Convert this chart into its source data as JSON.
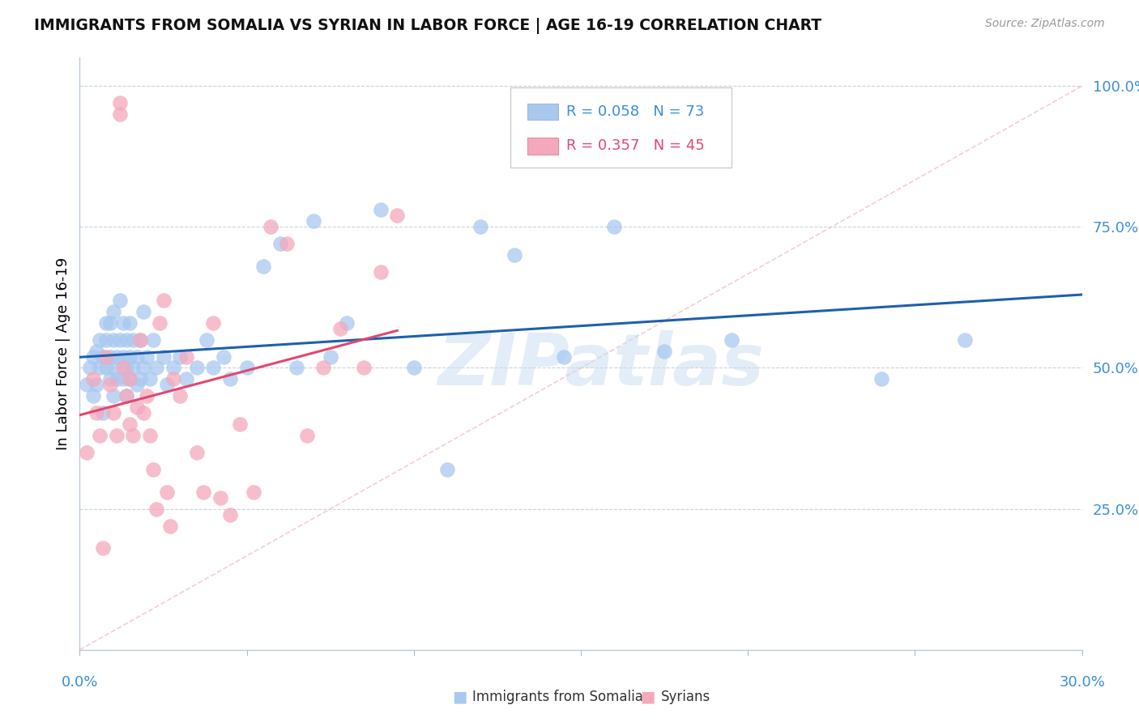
{
  "title": "IMMIGRANTS FROM SOMALIA VS SYRIAN IN LABOR FORCE | AGE 16-19 CORRELATION CHART",
  "source": "Source: ZipAtlas.com",
  "ylabel": "In Labor Force | Age 16-19",
  "watermark": "ZIPatlas",
  "legend_blue_r": "0.058",
  "legend_blue_n": "73",
  "legend_pink_r": "0.357",
  "legend_pink_n": "45",
  "legend_label_blue": "Immigrants from Somalia",
  "legend_label_pink": "Syrians",
  "blue_color": "#A8C8F0",
  "pink_color": "#F4A8BC",
  "blue_line_color": "#1E5FB0",
  "pink_line_color": "#E04870",
  "diagonal_color": "#F0C0CC",
  "xlim": [
    0.0,
    0.3
  ],
  "ylim": [
    0.0,
    1.05
  ],
  "somalia_x": [
    0.002,
    0.003,
    0.004,
    0.004,
    0.005,
    0.005,
    0.006,
    0.006,
    0.007,
    0.007,
    0.008,
    0.008,
    0.008,
    0.009,
    0.009,
    0.009,
    0.01,
    0.01,
    0.01,
    0.01,
    0.011,
    0.011,
    0.012,
    0.012,
    0.013,
    0.013,
    0.013,
    0.014,
    0.014,
    0.014,
    0.015,
    0.015,
    0.015,
    0.016,
    0.016,
    0.017,
    0.017,
    0.018,
    0.018,
    0.019,
    0.019,
    0.02,
    0.021,
    0.022,
    0.023,
    0.025,
    0.026,
    0.028,
    0.03,
    0.032,
    0.035,
    0.038,
    0.04,
    0.043,
    0.045,
    0.05,
    0.055,
    0.06,
    0.065,
    0.07,
    0.075,
    0.08,
    0.09,
    0.1,
    0.11,
    0.12,
    0.13,
    0.145,
    0.16,
    0.175,
    0.195,
    0.24,
    0.265
  ],
  "somalia_y": [
    0.47,
    0.5,
    0.45,
    0.52,
    0.47,
    0.53,
    0.5,
    0.55,
    0.42,
    0.52,
    0.58,
    0.5,
    0.55,
    0.48,
    0.52,
    0.58,
    0.45,
    0.5,
    0.55,
    0.6,
    0.52,
    0.48,
    0.55,
    0.62,
    0.48,
    0.52,
    0.58,
    0.45,
    0.5,
    0.55,
    0.48,
    0.52,
    0.58,
    0.5,
    0.55,
    0.47,
    0.52,
    0.48,
    0.55,
    0.5,
    0.6,
    0.52,
    0.48,
    0.55,
    0.5,
    0.52,
    0.47,
    0.5,
    0.52,
    0.48,
    0.5,
    0.55,
    0.5,
    0.52,
    0.48,
    0.5,
    0.68,
    0.72,
    0.5,
    0.76,
    0.52,
    0.58,
    0.78,
    0.5,
    0.32,
    0.75,
    0.7,
    0.52,
    0.75,
    0.53,
    0.55,
    0.48,
    0.55
  ],
  "syrian_x": [
    0.002,
    0.004,
    0.005,
    0.006,
    0.007,
    0.008,
    0.009,
    0.01,
    0.011,
    0.012,
    0.012,
    0.013,
    0.014,
    0.015,
    0.015,
    0.016,
    0.017,
    0.018,
    0.019,
    0.02,
    0.021,
    0.022,
    0.023,
    0.024,
    0.025,
    0.026,
    0.027,
    0.028,
    0.03,
    0.032,
    0.035,
    0.037,
    0.04,
    0.042,
    0.045,
    0.048,
    0.052,
    0.057,
    0.062,
    0.068,
    0.073,
    0.078,
    0.085,
    0.09,
    0.095
  ],
  "syrian_y": [
    0.35,
    0.48,
    0.42,
    0.38,
    0.18,
    0.52,
    0.47,
    0.42,
    0.38,
    0.97,
    0.95,
    0.5,
    0.45,
    0.4,
    0.48,
    0.38,
    0.43,
    0.55,
    0.42,
    0.45,
    0.38,
    0.32,
    0.25,
    0.58,
    0.62,
    0.28,
    0.22,
    0.48,
    0.45,
    0.52,
    0.35,
    0.28,
    0.58,
    0.27,
    0.24,
    0.4,
    0.28,
    0.75,
    0.72,
    0.38,
    0.5,
    0.57,
    0.5,
    0.67,
    0.77
  ]
}
